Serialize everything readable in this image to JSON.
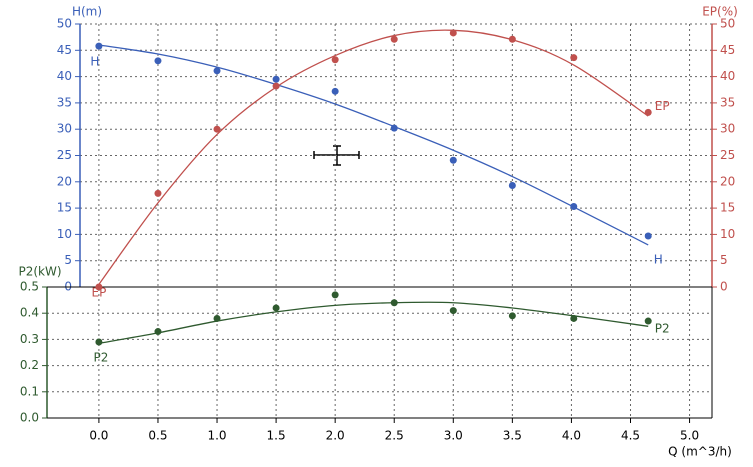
{
  "chart_data": {
    "type": "line",
    "x_label": "Q (m^3/h)",
    "y_label": "H(m)",
    "y2_label": "EP(%)",
    "y3_label": "P2(kW)",
    "grid": true,
    "xlim": [
      -0.16,
      5.19
    ],
    "xticks": [
      {
        "value": 0,
        "label": "0.0"
      },
      {
        "value": 0.5,
        "label": "0.5"
      },
      {
        "value": 1,
        "label": "1.0"
      },
      {
        "value": 1.5,
        "label": "1.5"
      },
      {
        "value": 2,
        "label": "2.0"
      },
      {
        "value": 2.5,
        "label": "2.5"
      },
      {
        "value": 3,
        "label": "3.0"
      },
      {
        "value": 3.5,
        "label": "3.5"
      },
      {
        "value": 4,
        "label": "4.0"
      },
      {
        "value": 4.5,
        "label": "4.5"
      },
      {
        "value": 5,
        "label": "5.0"
      }
    ],
    "ylim": [
      0,
      50
    ],
    "yticks": [
      0,
      5,
      10,
      15,
      20,
      25,
      30,
      35,
      40,
      45,
      50
    ],
    "y2lim": [
      0,
      50
    ],
    "y2ticks": [
      0,
      5,
      10,
      15,
      20,
      25,
      30,
      35,
      40,
      45,
      50
    ],
    "y3lim": [
      0,
      0.5
    ],
    "y3ticks": [
      {
        "value": 0,
        "label": "0.0"
      },
      0.1,
      0.2,
      0.3,
      0.4,
      0.5
    ],
    "x": [
      0,
      0.5,
      1,
      1.5,
      2,
      2.5,
      3,
      3.5,
      4.02,
      4.65
    ],
    "series": [
      {
        "name": "H",
        "color": "#3a5fb8",
        "axis": "y",
        "values": [
          45.8,
          43.0,
          41.1,
          39.5,
          37.2,
          30.2,
          24.1,
          19.3,
          15.3,
          9.7
        ],
        "fit": [
          46,
          44.3,
          41.8,
          38.5,
          34.8,
          30.5,
          26,
          21,
          15.2,
          8
        ]
      },
      {
        "name": "EP",
        "color": "#c0504d",
        "axis": "y2",
        "values": [
          0,
          17.8,
          30,
          38.2,
          43.2,
          47.1,
          48.3,
          47.1,
          43.6,
          33.2
        ],
        "fit": [
          0.5,
          16,
          29,
          38,
          44,
          47.8,
          48.8,
          47,
          42.2,
          32.5
        ]
      },
      {
        "name": "P2",
        "color": "#2f5a2f",
        "axis": "y3",
        "values": [
          0.29,
          0.33,
          0.38,
          0.42,
          0.47,
          0.44,
          0.41,
          0.39,
          0.38,
          0.37
        ],
        "fit": [
          0.285,
          0.325,
          0.37,
          0.405,
          0.43,
          0.44,
          0.44,
          0.42,
          0.39,
          0.35
        ]
      }
    ]
  }
}
